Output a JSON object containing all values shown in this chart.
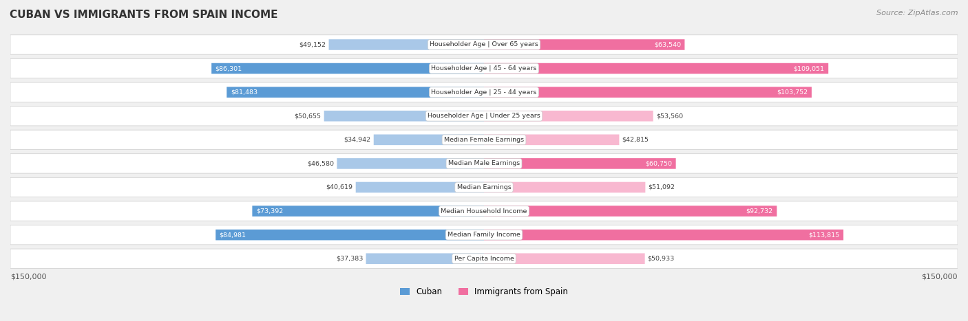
{
  "title": "CUBAN VS IMMIGRANTS FROM SPAIN INCOME",
  "source": "Source: ZipAtlas.com",
  "categories": [
    "Per Capita Income",
    "Median Family Income",
    "Median Household Income",
    "Median Earnings",
    "Median Male Earnings",
    "Median Female Earnings",
    "Householder Age | Under 25 years",
    "Householder Age | 25 - 44 years",
    "Householder Age | 45 - 64 years",
    "Householder Age | Over 65 years"
  ],
  "cuban_values": [
    37383,
    84981,
    73392,
    40619,
    46580,
    34942,
    50655,
    81483,
    86301,
    49152
  ],
  "spain_values": [
    50933,
    113815,
    92732,
    51092,
    60750,
    42815,
    53560,
    103752,
    109051,
    63540
  ],
  "cuban_labels": [
    "$37,383",
    "$84,981",
    "$73,392",
    "$40,619",
    "$46,580",
    "$34,942",
    "$50,655",
    "$81,483",
    "$86,301",
    "$49,152"
  ],
  "spain_labels": [
    "$50,933",
    "$113,815",
    "$92,732",
    "$51,092",
    "$60,750",
    "$42,815",
    "$53,560",
    "$103,752",
    "$109,051",
    "$63,540"
  ],
  "cuban_color_dark": "#5b9bd5",
  "cuban_color_light": "#a9c8e8",
  "spain_color_dark": "#f06fa0",
  "spain_color_light": "#f8b8d0",
  "max_value": 150000,
  "legend_cuban": "Cuban",
  "legend_spain": "Immigrants from Spain",
  "background_color": "#f0f0f0",
  "row_bg_color": "#ffffff"
}
